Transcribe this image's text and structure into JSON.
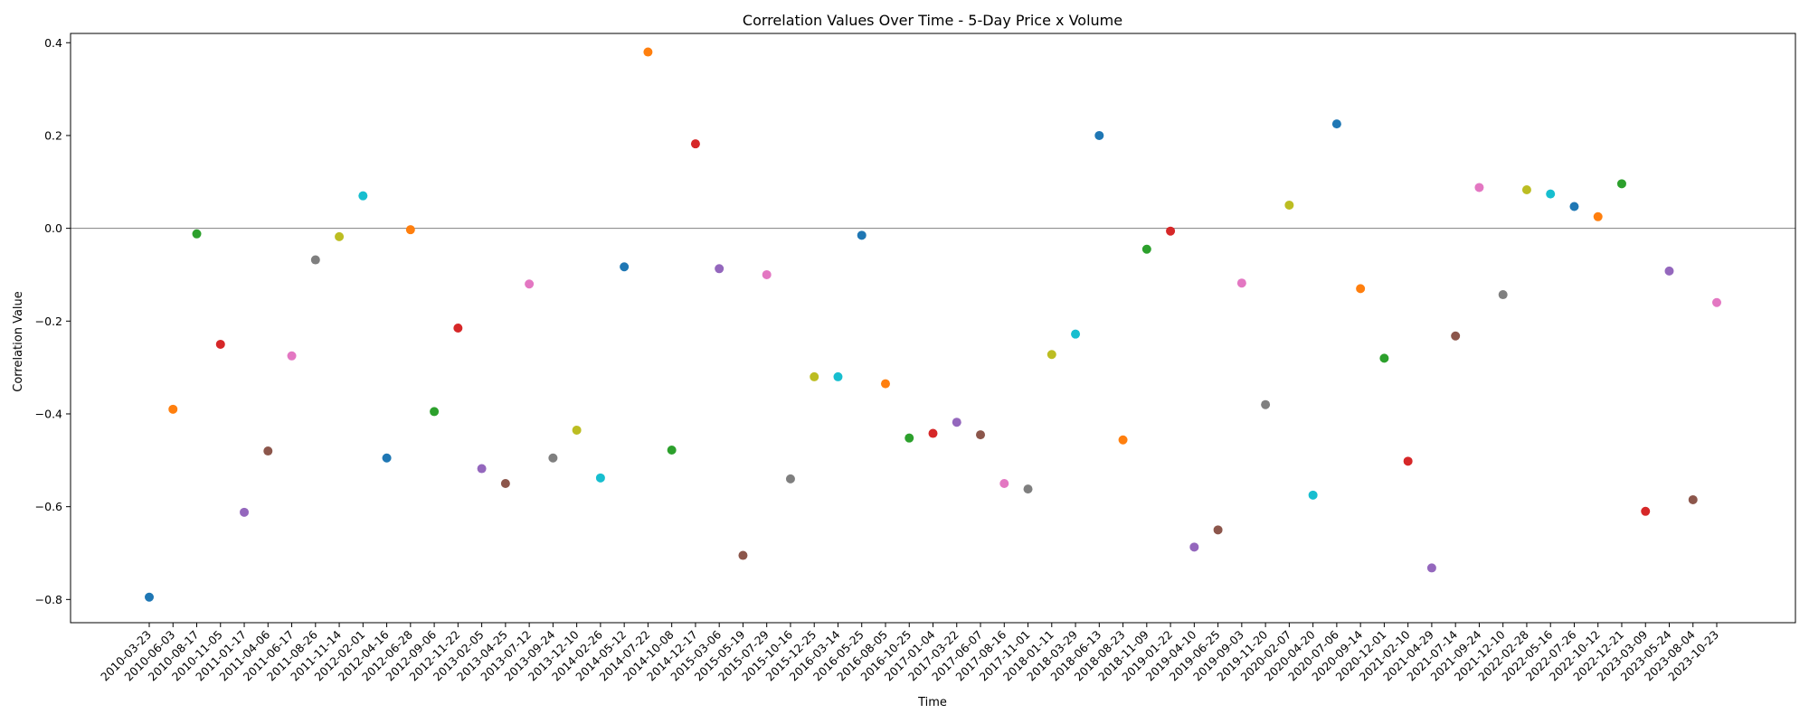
{
  "chart_data": {
    "type": "scatter",
    "title": "Correlation Values Over Time - 5-Day Price x Volume",
    "xlabel": "Time",
    "ylabel": "Correlation Value",
    "ylim": [
      -0.85,
      0.42
    ],
    "yticks": [
      -0.8,
      -0.6,
      -0.4,
      -0.2,
      0.0,
      0.2,
      0.4
    ],
    "ytick_labels": [
      "−0.8",
      "−0.6",
      "−0.4",
      "−0.2",
      "0.0",
      "0.2",
      "0.4"
    ],
    "reference_line_y": 0.0,
    "grid": false,
    "legend": "none",
    "palette": [
      "#1f77b4",
      "#ff7f0e",
      "#2ca02c",
      "#d62728",
      "#9467bd",
      "#8c564b",
      "#e377c2",
      "#7f7f7f",
      "#bcbd22",
      "#17becf"
    ],
    "reference_line_color": "#808080",
    "x": [
      "2010-03-23",
      "2010-06-03",
      "2010-08-17",
      "2010-11-05",
      "2011-01-17",
      "2011-04-06",
      "2011-06-17",
      "2011-08-26",
      "2011-11-14",
      "2012-02-01",
      "2012-04-16",
      "2012-06-28",
      "2012-09-06",
      "2012-11-22",
      "2013-02-05",
      "2013-04-25",
      "2013-07-12",
      "2013-09-24",
      "2013-12-10",
      "2014-02-26",
      "2014-05-12",
      "2014-07-22",
      "2014-10-08",
      "2014-12-17",
      "2015-03-06",
      "2015-05-19",
      "2015-07-29",
      "2015-10-16",
      "2015-12-25",
      "2016-03-14",
      "2016-05-25",
      "2016-08-05",
      "2016-10-25",
      "2017-01-04",
      "2017-03-22",
      "2017-06-07",
      "2017-08-16",
      "2017-11-01",
      "2018-01-11",
      "2018-03-29",
      "2018-06-13",
      "2018-08-23",
      "2018-11-09",
      "2019-01-22",
      "2019-04-10",
      "2019-06-25",
      "2019-09-03",
      "2019-11-20",
      "2020-02-07",
      "2020-04-20",
      "2020-07-06",
      "2020-09-14",
      "2020-12-01",
      "2021-02-10",
      "2021-04-29",
      "2021-07-14",
      "2021-09-24",
      "2021-12-10",
      "2022-02-28",
      "2022-05-16",
      "2022-07-26",
      "2022-10-12",
      "2022-12-21",
      "2023-03-09",
      "2023-05-24",
      "2023-08-04",
      "2023-10-23"
    ],
    "values": [
      -0.795,
      -0.39,
      -0.012,
      -0.25,
      -0.612,
      -0.48,
      -0.275,
      -0.068,
      -0.018,
      0.07,
      -0.495,
      -0.003,
      -0.395,
      -0.215,
      -0.518,
      -0.55,
      -0.12,
      -0.495,
      -0.435,
      -0.538,
      -0.083,
      0.38,
      -0.478,
      0.182,
      -0.087,
      -0.705,
      -0.1,
      -0.54,
      -0.32,
      -0.32,
      -0.015,
      -0.335,
      -0.452,
      -0.442,
      -0.418,
      -0.445,
      -0.55,
      -0.562,
      -0.272,
      -0.228,
      0.2,
      -0.456,
      -0.045,
      -0.006,
      -0.687,
      -0.65,
      -0.118,
      -0.38,
      0.05,
      -0.575,
      0.225,
      -0.13,
      -0.28,
      -0.502,
      -0.732,
      -0.232,
      0.088,
      -0.143,
      0.083,
      0.074,
      0.047,
      0.025,
      0.096,
      -0.61,
      -0.092,
      -0.585,
      -0.16
    ]
  }
}
